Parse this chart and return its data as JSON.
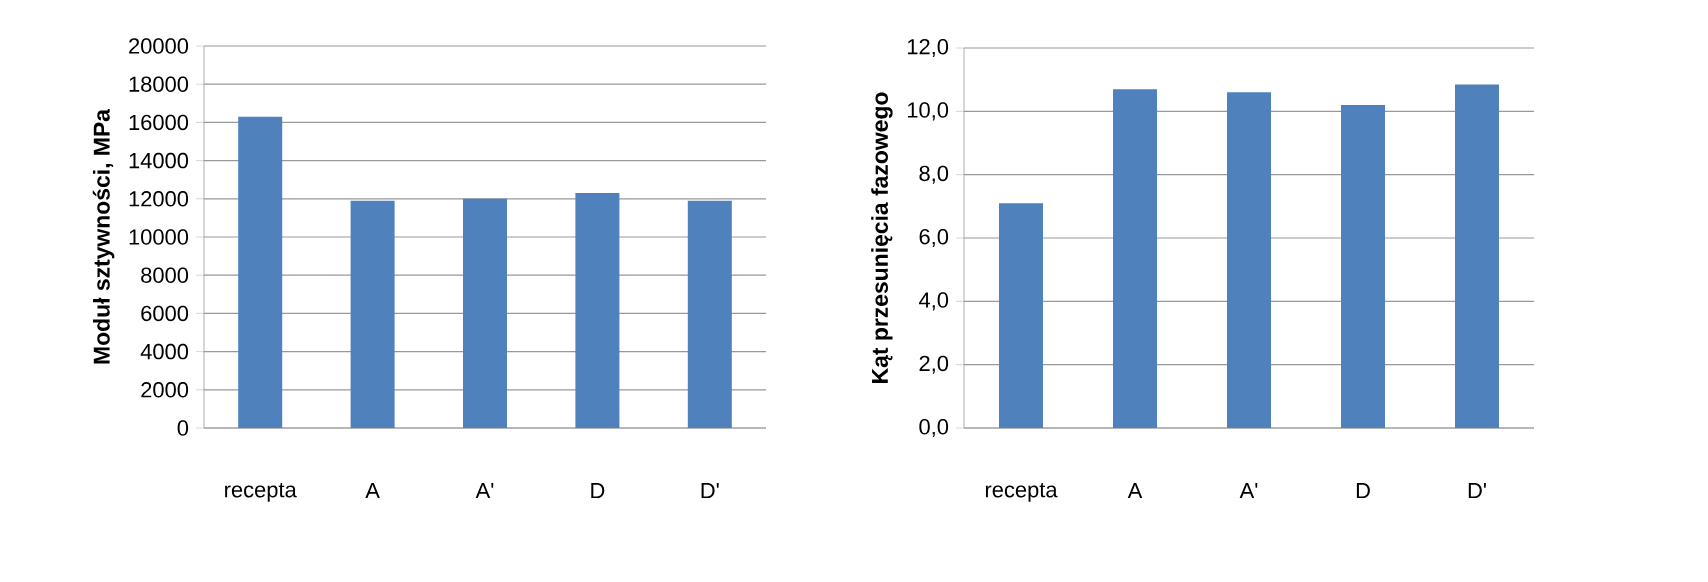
{
  "chart_data": [
    {
      "type": "bar",
      "ylabel": "Moduł sztywności, MPa",
      "categories": [
        "recepta",
        "A",
        "A'",
        "D",
        "D'"
      ],
      "values": [
        16300,
        11900,
        12000,
        12300,
        11900
      ],
      "color": "#4f81bd",
      "ylim": [
        0,
        20000
      ],
      "yticks": [
        0,
        2000,
        4000,
        6000,
        8000,
        10000,
        12000,
        14000,
        16000,
        18000,
        20000
      ],
      "grid": "y"
    },
    {
      "type": "bar",
      "ylabel": "Kąt przesunięcia fazowego",
      "categories": [
        "recepta",
        "A",
        "A'",
        "D",
        "D'"
      ],
      "values": [
        7.1,
        10.7,
        10.6,
        10.2,
        10.85
      ],
      "color": "#4f81bd",
      "ylim": [
        0,
        12
      ],
      "yticks": [
        {
          "value": 0,
          "label": "0,0"
        },
        {
          "value": 2,
          "label": "2,0"
        },
        {
          "value": 4,
          "label": "4,0"
        },
        {
          "value": 6,
          "label": "6,0"
        },
        {
          "value": 8,
          "label": "8,0"
        },
        {
          "value": 10,
          "label": "10,0"
        },
        {
          "value": 12,
          "label": "12,0"
        }
      ],
      "grid": "y"
    }
  ]
}
